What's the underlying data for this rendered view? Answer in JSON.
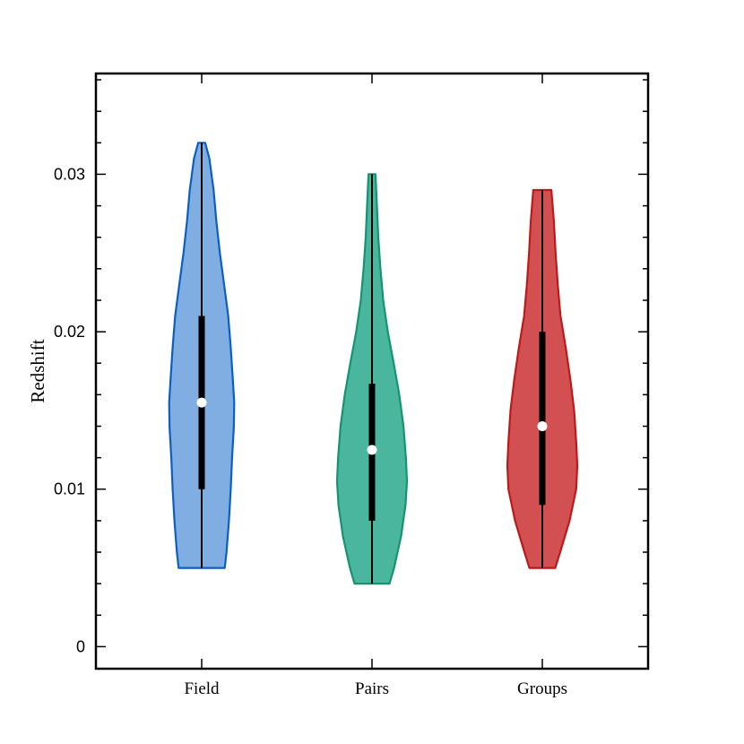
{
  "chart_data": {
    "type": "violin",
    "title": "",
    "xlabel": "",
    "ylabel": "Redshift",
    "ylim": [
      -0.0014,
      0.0364
    ],
    "yticks": [
      0,
      0.01,
      0.02,
      0.03
    ],
    "ytick_labels": [
      "0",
      "0.01",
      "0.02",
      "0.03"
    ],
    "grid": false,
    "legend": "none",
    "categories": [
      "Field",
      "Pairs",
      "Groups"
    ],
    "series": [
      {
        "category": "Field",
        "fill": "#80ADE2",
        "stroke": "#0B5FC0",
        "min": 0.005,
        "q1": 0.01,
        "median": 0.0155,
        "q3": 0.021,
        "max": 0.032,
        "density": [
          [
            0.005,
            0.34
          ],
          [
            0.006,
            0.29
          ],
          [
            0.008,
            0.22
          ],
          [
            0.01,
            0.17
          ],
          [
            0.012,
            0.13
          ],
          [
            0.014,
            0.08
          ],
          [
            0.0155,
            0.07
          ],
          [
            0.017,
            0.11
          ],
          [
            0.019,
            0.17
          ],
          [
            0.021,
            0.24
          ],
          [
            0.023,
            0.36
          ],
          [
            0.025,
            0.48
          ],
          [
            0.027,
            0.58
          ],
          [
            0.029,
            0.66
          ],
          [
            0.031,
            0.78
          ],
          [
            0.032,
            0.9
          ]
        ]
      },
      {
        "category": "Pairs",
        "fill": "#4BB69E",
        "stroke": "#14946F",
        "min": 0.004,
        "q1": 0.008,
        "median": 0.0125,
        "q3": 0.0167,
        "max": 0.03,
        "density": [
          [
            0.004,
            0.5
          ],
          [
            0.005,
            0.37
          ],
          [
            0.007,
            0.17
          ],
          [
            0.009,
            0.04
          ],
          [
            0.0105,
            0.0
          ],
          [
            0.012,
            0.03
          ],
          [
            0.014,
            0.1
          ],
          [
            0.016,
            0.22
          ],
          [
            0.018,
            0.38
          ],
          [
            0.02,
            0.55
          ],
          [
            0.022,
            0.68
          ],
          [
            0.024,
            0.76
          ],
          [
            0.026,
            0.82
          ],
          [
            0.028,
            0.86
          ],
          [
            0.03,
            0.9
          ]
        ]
      },
      {
        "category": "Groups",
        "fill": "#D25052",
        "stroke": "#BC1A1A",
        "min": 0.005,
        "q1": 0.009,
        "median": 0.014,
        "q3": 0.02,
        "max": 0.029,
        "density": [
          [
            0.005,
            0.63
          ],
          [
            0.006,
            0.49
          ],
          [
            0.008,
            0.22
          ],
          [
            0.01,
            0.03
          ],
          [
            0.0115,
            0.0
          ],
          [
            0.013,
            0.03
          ],
          [
            0.015,
            0.09
          ],
          [
            0.017,
            0.2
          ],
          [
            0.019,
            0.33
          ],
          [
            0.021,
            0.48
          ],
          [
            0.023,
            0.56
          ],
          [
            0.025,
            0.62
          ],
          [
            0.027,
            0.67
          ],
          [
            0.029,
            0.74
          ]
        ]
      }
    ]
  }
}
